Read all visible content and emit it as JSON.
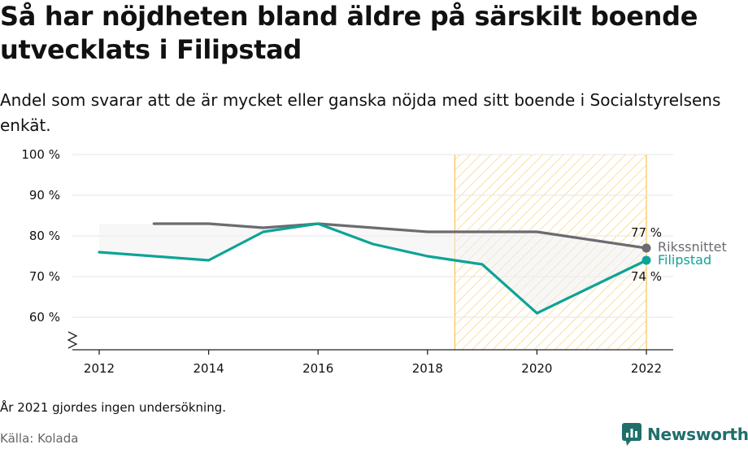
{
  "title": "Så har nöjdheten bland äldre på särskilt boende utvecklats i Filipstad",
  "subtitle": "Andel som svarar att de är mycket eller ganska nöjda med sitt boende i Socialstyrelsens enkät.",
  "note": "År 2021 gjordes ingen undersökning.",
  "source": "Källa: Kolada",
  "brand": "Newsworthy",
  "colors": {
    "national": "#6b6b70",
    "local": "#0ea397",
    "highlight": "#f5c451",
    "grid": "#e6e6e6",
    "brand": "#1f6f6a"
  },
  "chart_data": {
    "type": "line",
    "x_ticks": [
      2012,
      2014,
      2016,
      2018,
      2020,
      2022
    ],
    "y_ticks": [
      60,
      70,
      80,
      90,
      100
    ],
    "y_tick_labels": [
      "60 %",
      "70 %",
      "80 %",
      "90 %",
      "100 %"
    ],
    "xlim": [
      2012,
      2022
    ],
    "ylim": [
      52,
      100
    ],
    "highlight_range": [
      2018.5,
      2022
    ],
    "series": [
      {
        "name": "Rikssnittet",
        "color": "#6b6b70",
        "x": [
          2013,
          2014,
          2015,
          2016,
          2017,
          2018,
          2019,
          2020,
          2022
        ],
        "y": [
          83,
          83,
          82,
          83,
          82,
          81,
          81,
          81,
          77
        ],
        "end_label": "77 %"
      },
      {
        "name": "Filipstad",
        "color": "#0ea397",
        "x": [
          2012,
          2014,
          2015,
          2016,
          2017,
          2018,
          2019,
          2020,
          2022
        ],
        "y": [
          76,
          74,
          81,
          83,
          78,
          75,
          73,
          61,
          74
        ],
        "end_label": "74 %"
      }
    ]
  }
}
